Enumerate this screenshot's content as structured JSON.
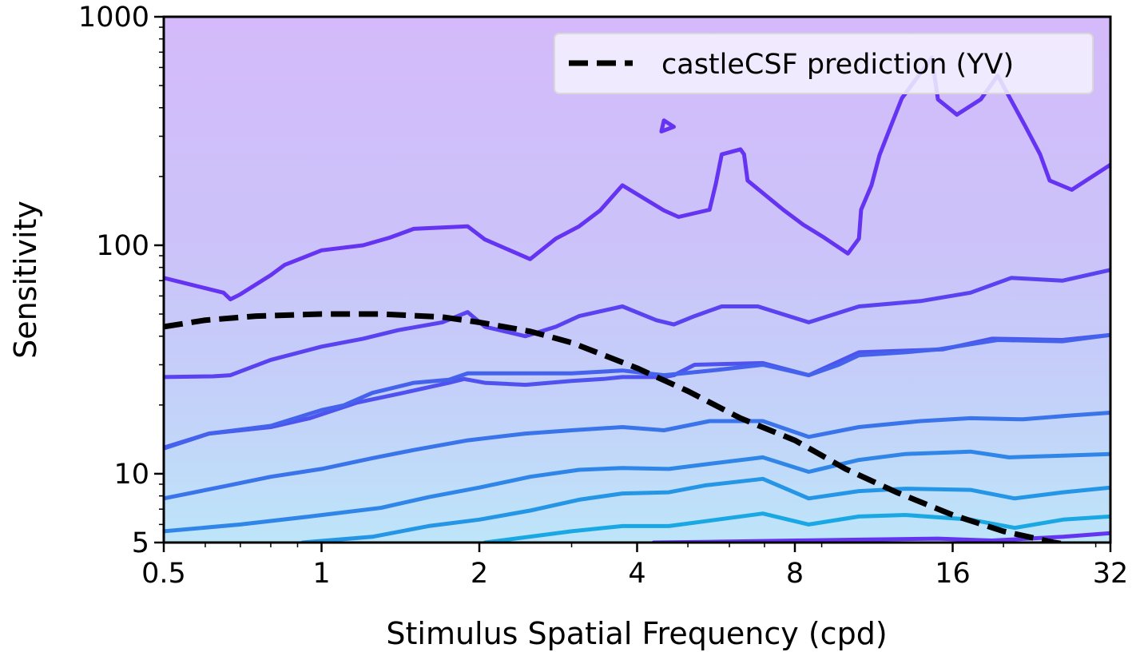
{
  "chart_data": {
    "type": "line",
    "xlabel": "Stimulus Spatial Frequency (cpd)",
    "ylabel": "Sensitivity",
    "xscale": "log2",
    "yscale": "log10",
    "xlim": [
      0.5,
      32
    ],
    "ylim": [
      5,
      1000
    ],
    "xticks": [
      0.5,
      1,
      2,
      4,
      8,
      16,
      32
    ],
    "xtick_labels": [
      "0.5",
      "1",
      "2",
      "4",
      "8",
      "16",
      "32"
    ],
    "yticks": [
      5,
      10,
      100,
      1000
    ],
    "ytick_labels": [
      "5",
      "10",
      "100",
      "1000"
    ],
    "legend": {
      "placement": "top-right",
      "entries": [
        "castleCSF prediction (YV)"
      ]
    },
    "contour_colors": [
      "#6534f2",
      "#5a42f0",
      "#4f52ee",
      "#4462ec",
      "#3a74ea",
      "#2f86e8",
      "#2596e6",
      "#1aa8e4"
    ],
    "band_colors": [
      "#d2baf8",
      "#ccc0f8",
      "#c6c6f8",
      "#c2ccf8",
      "#bed4f8",
      "#bcdcf8",
      "#bae4f8",
      "#b8ecf8"
    ],
    "series": [
      {
        "name": "castleCSF prediction (YV)",
        "style": "dashed",
        "color": "#000000",
        "x": [
          0.5,
          0.6,
          0.75,
          1.0,
          1.3,
          1.7,
          2.0,
          2.5,
          3.0,
          4.0,
          5.0,
          6.3,
          8.0,
          10.0,
          12.5,
          16.0,
          20.0,
          25.0,
          28.0
        ],
        "y": [
          44,
          47,
          49,
          50,
          50,
          48.5,
          46,
          42,
          37.5,
          29,
          23,
          17.5,
          14,
          10.5,
          8.3,
          6.6,
          5.6,
          5.0,
          4.8
        ]
      }
    ],
    "contours": [
      {
        "x": [
          0.5,
          0.65,
          0.67,
          0.7,
          0.8,
          0.85,
          1.0,
          1.2,
          1.35,
          1.5,
          1.9,
          2.05,
          2.5,
          2.8,
          3.1,
          3.4,
          3.75,
          4.5,
          4.8,
          5.5,
          5.65,
          5.8,
          6.3,
          6.4,
          6.5,
          7.6,
          8.3,
          9.1,
          10.1,
          10.6,
          10.7,
          11.2,
          11.6,
          12.2,
          12.8,
          14.6,
          15.0,
          16.3,
          18.1,
          19.5,
          22.0,
          23.5,
          24.5,
          27.0,
          32.0
        ],
        "y": [
          72,
          62,
          58,
          61,
          74,
          82,
          95,
          100,
          108,
          118,
          121,
          106,
          87,
          107,
          121,
          142,
          183,
          142,
          133,
          143,
          185,
          250,
          263,
          250,
          192,
          143,
          123,
          108,
          92,
          107,
          143,
          183,
          248,
          333,
          440,
          661,
          435,
          373,
          435,
          553,
          333,
          250,
          192,
          175,
          225
        ]
      },
      {
        "x": [
          0.5,
          0.62,
          0.67,
          0.8,
          1.0,
          1.2,
          1.4,
          1.7,
          1.9,
          2.05,
          2.45,
          2.8,
          3.1,
          3.75,
          4.35,
          4.7,
          5.15,
          5.8,
          6.8,
          8.5,
          10.6,
          13.9,
          17.3,
          20.7,
          25.9,
          32.0
        ],
        "y": [
          26.5,
          26.7,
          27.0,
          31.5,
          36.0,
          39.0,
          42.5,
          46.0,
          51.0,
          44.0,
          40.0,
          44.0,
          49.0,
          54.0,
          47.0,
          45.0,
          49.0,
          54.0,
          54.0,
          46.0,
          54.0,
          57.0,
          62.0,
          72.0,
          70.0,
          78.0
        ]
      },
      {
        "x": [
          0.5,
          0.61,
          0.8,
          0.95,
          1.17,
          1.42,
          1.75,
          1.87,
          2.05,
          2.45,
          3.0,
          3.45,
          3.75,
          4.5,
          4.7,
          5.15,
          6.95,
          8.5,
          10.6,
          15.3,
          19.0,
          25.9,
          32.0
        ],
        "y": [
          13.0,
          15.0,
          16.0,
          17.5,
          20.5,
          22.5,
          25.0,
          26.0,
          25.0,
          24.5,
          25.5,
          26.0,
          26.5,
          26.5,
          27.0,
          30.0,
          30.5,
          27.0,
          34.0,
          35.0,
          39.0,
          38.5,
          40.5
        ]
      },
      {
        "x": [
          0.5,
          0.61,
          0.8,
          1.0,
          1.1,
          1.25,
          1.5,
          1.75,
          1.9,
          2.45,
          3.0,
          3.75,
          4.5,
          5.7,
          6.95,
          8.5,
          9.7,
          10.6,
          13.0,
          15.0,
          19.5,
          25.9,
          32.0
        ],
        "y": [
          12.9,
          15.0,
          16.2,
          19.0,
          19.9,
          22.6,
          25.0,
          25.8,
          27.5,
          27.5,
          27.5,
          28.3,
          27.0,
          28.5,
          30.0,
          27.0,
          30.0,
          33.0,
          34.0,
          35.0,
          38.5,
          38.0,
          40.5
        ]
      },
      {
        "x": [
          0.5,
          0.65,
          0.8,
          1.0,
          1.25,
          1.5,
          1.9,
          2.45,
          3.0,
          3.75,
          4.5,
          5.5,
          6.95,
          8.5,
          10.6,
          13.9,
          17.3,
          21.8,
          27.0,
          32.0
        ],
        "y": [
          7.8,
          8.8,
          9.7,
          10.5,
          11.7,
          12.7,
          14.0,
          15.0,
          15.5,
          16.0,
          15.5,
          17.0,
          17.0,
          14.5,
          16.0,
          17.0,
          17.5,
          17.3,
          18.0,
          18.5
        ]
      },
      {
        "x": [
          0.5,
          0.7,
          0.95,
          1.3,
          1.6,
          2.0,
          2.5,
          3.1,
          3.75,
          4.6,
          5.4,
          6.95,
          8.5,
          10.6,
          13.0,
          17.3,
          20.5,
          26.0,
          32.0
        ],
        "y": [
          5.6,
          6.0,
          6.5,
          7.1,
          7.9,
          8.7,
          9.7,
          10.4,
          10.6,
          10.5,
          11.0,
          11.8,
          10.2,
          11.5,
          12.2,
          12.5,
          11.8,
          12.0,
          12.2
        ]
      },
      {
        "x": [
          0.92,
          1.25,
          1.6,
          2.0,
          2.5,
          3.1,
          3.75,
          4.6,
          5.4,
          6.95,
          8.5,
          10.6,
          13.0,
          17.3,
          21.0,
          26.0,
          32.0
        ],
        "y": [
          5.0,
          5.3,
          5.9,
          6.3,
          6.9,
          7.7,
          8.2,
          8.3,
          8.9,
          9.5,
          7.8,
          8.4,
          8.6,
          8.5,
          7.8,
          8.3,
          8.7
        ]
      },
      {
        "x": [
          2.05,
          3.0,
          3.75,
          4.6,
          5.4,
          6.95,
          8.5,
          10.6,
          13.0,
          17.3,
          21.0,
          26.0,
          32.0
        ],
        "y": [
          5.0,
          5.6,
          5.9,
          5.9,
          6.2,
          6.7,
          6.0,
          6.5,
          6.6,
          6.3,
          5.8,
          6.3,
          6.5
        ]
      },
      {
        "x": [
          4.3,
          6.0,
          8.0,
          11.0,
          15.0,
          19.0,
          26.0,
          32.0
        ],
        "y": [
          5.0,
          5.05,
          5.1,
          5.15,
          5.2,
          5.1,
          5.3,
          5.5
        ]
      }
    ]
  }
}
